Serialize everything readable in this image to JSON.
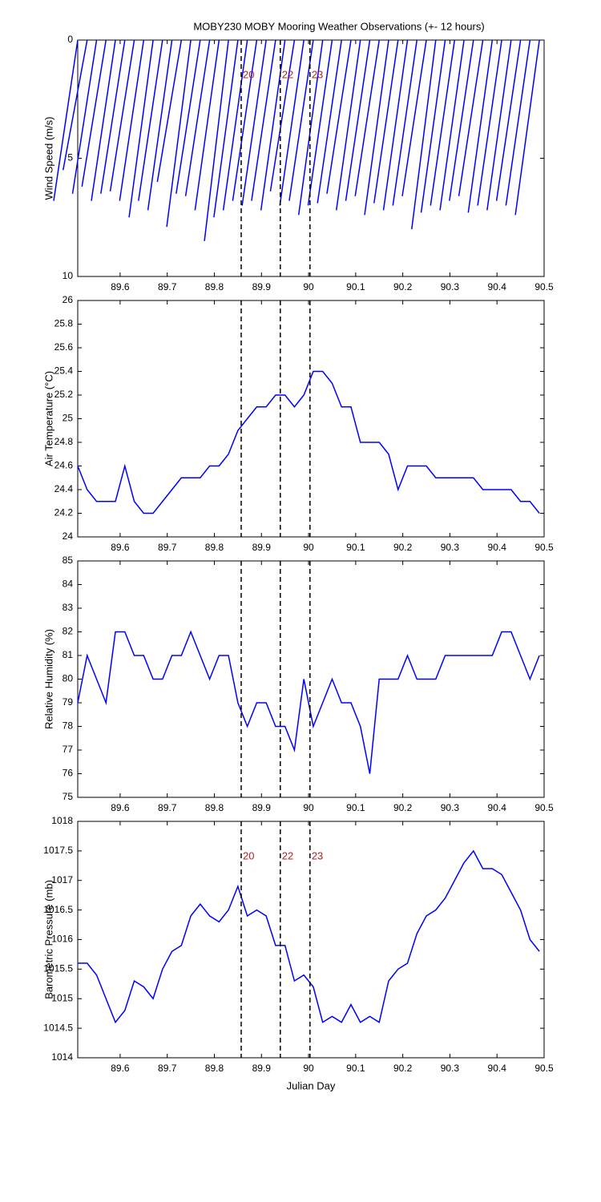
{
  "events": [
    {
      "x": 89.857,
      "label": "20"
    },
    {
      "x": 89.94,
      "label": "22"
    },
    {
      "x": 90.003,
      "label": "23"
    }
  ],
  "chart_data": [
    {
      "type": "stick",
      "title": "MOBY230 MOBY Mooring Weather Observations (+- 12 hours)",
      "ylabel": "Wind Speed (m/s)",
      "color": "#0000ff",
      "event_labels": true,
      "xlim": [
        89.51,
        90.5
      ],
      "xticks": [
        89.6,
        89.7,
        89.8,
        89.9,
        90,
        90.1,
        90.2,
        90.3,
        90.4,
        90.5
      ],
      "ylim": [
        0,
        10
      ],
      "y_reversed": true,
      "yticks": [
        0,
        5,
        10
      ],
      "x": [
        89.51,
        89.53,
        89.55,
        89.57,
        89.59,
        89.61,
        89.63,
        89.65,
        89.67,
        89.69,
        89.71,
        89.73,
        89.75,
        89.77,
        89.79,
        89.81,
        89.83,
        89.85,
        89.87,
        89.89,
        89.91,
        89.93,
        89.95,
        89.97,
        89.99,
        90.01,
        90.03,
        90.05,
        90.07,
        90.09,
        90.11,
        90.13,
        90.15,
        90.17,
        90.19,
        90.21,
        90.23,
        90.25,
        90.27,
        90.29,
        90.31,
        90.33,
        90.35,
        90.37,
        90.39,
        90.41,
        90.43,
        90.45,
        90.47,
        90.49
      ],
      "values": [
        6.8,
        5.5,
        6.5,
        6.2,
        6.8,
        6.5,
        6.4,
        6.8,
        7.5,
        6.8,
        7.2,
        6.0,
        7.9,
        6.5,
        6.6,
        7.2,
        8.5,
        7.5,
        7.2,
        6.8,
        7.0,
        6.8,
        7.2,
        6.4,
        7.0,
        6.8,
        7.4,
        7.0,
        6.9,
        6.5,
        7.2,
        6.8,
        6.6,
        7.4,
        6.9,
        7.2,
        7.0,
        6.6,
        8.0,
        7.3,
        7.0,
        7.2,
        6.8,
        6.6,
        7.3,
        7.0,
        7.2,
        6.8,
        7.0,
        7.4
      ]
    },
    {
      "type": "line",
      "ylabel": "Air Temperature (°C)",
      "color": "#0000ff",
      "event_labels": false,
      "xlim": [
        89.51,
        90.5
      ],
      "xticks": [
        89.6,
        89.7,
        89.8,
        89.9,
        90,
        90.1,
        90.2,
        90.3,
        90.4,
        90.5
      ],
      "ylim": [
        24,
        26
      ],
      "yticks": [
        24,
        24.2,
        24.4,
        24.6,
        24.8,
        25,
        25.2,
        25.4,
        25.6,
        25.8,
        26
      ],
      "x": [
        89.51,
        89.53,
        89.55,
        89.57,
        89.59,
        89.61,
        89.63,
        89.65,
        89.67,
        89.69,
        89.71,
        89.73,
        89.75,
        89.77,
        89.79,
        89.81,
        89.83,
        89.85,
        89.87,
        89.89,
        89.91,
        89.93,
        89.95,
        89.97,
        89.99,
        90.01,
        90.03,
        90.05,
        90.07,
        90.09,
        90.11,
        90.13,
        90.15,
        90.17,
        90.19,
        90.21,
        90.23,
        90.25,
        90.27,
        90.29,
        90.31,
        90.33,
        90.35,
        90.37,
        90.39,
        90.41,
        90.43,
        90.45,
        90.47,
        90.49
      ],
      "values": [
        24.6,
        24.4,
        24.3,
        24.3,
        24.3,
        24.6,
        24.3,
        24.2,
        24.2,
        24.3,
        24.4,
        24.5,
        24.5,
        24.5,
        24.6,
        24.6,
        24.7,
        24.9,
        25.0,
        25.1,
        25.1,
        25.2,
        25.2,
        25.1,
        25.2,
        25.4,
        25.4,
        25.3,
        25.1,
        25.1,
        24.8,
        24.8,
        24.8,
        24.7,
        24.4,
        24.6,
        24.6,
        24.6,
        24.5,
        24.5,
        24.5,
        24.5,
        24.5,
        24.4,
        24.4,
        24.4,
        24.4,
        24.3,
        24.3,
        24.2
      ]
    },
    {
      "type": "line",
      "ylabel": "Relative Humidity (%)",
      "color": "#0000ff",
      "event_labels": false,
      "xlim": [
        89.51,
        90.5
      ],
      "xticks": [
        89.6,
        89.7,
        89.8,
        89.9,
        90,
        90.1,
        90.2,
        90.3,
        90.4,
        90.5
      ],
      "ylim": [
        75,
        85
      ],
      "yticks": [
        75,
        76,
        77,
        78,
        79,
        80,
        81,
        82,
        83,
        84,
        85
      ],
      "x": [
        89.51,
        89.53,
        89.55,
        89.57,
        89.59,
        89.61,
        89.63,
        89.65,
        89.67,
        89.69,
        89.71,
        89.73,
        89.75,
        89.77,
        89.79,
        89.81,
        89.83,
        89.85,
        89.87,
        89.89,
        89.91,
        89.93,
        89.95,
        89.97,
        89.99,
        90.01,
        90.03,
        90.05,
        90.07,
        90.09,
        90.11,
        90.13,
        90.15,
        90.17,
        90.19,
        90.21,
        90.23,
        90.25,
        90.27,
        90.29,
        90.31,
        90.33,
        90.35,
        90.37,
        90.39,
        90.41,
        90.43,
        90.45,
        90.47,
        90.49
      ],
      "values": [
        79,
        81,
        80,
        79,
        82,
        82,
        81,
        81,
        80,
        80,
        81,
        81,
        82,
        81,
        80,
        81,
        81,
        79,
        78,
        79,
        79,
        78,
        78,
        77,
        80,
        78,
        79,
        80,
        79,
        79,
        78,
        76,
        80,
        80,
        80,
        81,
        80,
        80,
        80,
        81,
        81,
        81,
        81,
        81,
        81,
        82,
        82,
        81,
        80,
        81
      ]
    },
    {
      "type": "line",
      "ylabel": "Barometric Pressure (mb)",
      "xlabel": "Julian Day",
      "color": "#0000ff",
      "event_labels": true,
      "xlim": [
        89.51,
        90.5
      ],
      "xticks": [
        89.6,
        89.7,
        89.8,
        89.9,
        90,
        90.1,
        90.2,
        90.3,
        90.4,
        90.5
      ],
      "ylim": [
        1014,
        1018
      ],
      "yticks": [
        1014,
        1014.5,
        1015,
        1015.5,
        1016,
        1016.5,
        1017,
        1017.5,
        1018
      ],
      "x": [
        89.51,
        89.53,
        89.55,
        89.57,
        89.59,
        89.61,
        89.63,
        89.65,
        89.67,
        89.69,
        89.71,
        89.73,
        89.75,
        89.77,
        89.79,
        89.81,
        89.83,
        89.85,
        89.87,
        89.89,
        89.91,
        89.93,
        89.95,
        89.97,
        89.99,
        90.01,
        90.03,
        90.05,
        90.07,
        90.09,
        90.11,
        90.13,
        90.15,
        90.17,
        90.19,
        90.21,
        90.23,
        90.25,
        90.27,
        90.29,
        90.31,
        90.33,
        90.35,
        90.37,
        90.39,
        90.41,
        90.43,
        90.45,
        90.47,
        90.49
      ],
      "values": [
        1015.6,
        1015.6,
        1015.4,
        1015.0,
        1014.6,
        1014.8,
        1015.3,
        1015.2,
        1015.0,
        1015.5,
        1015.8,
        1015.9,
        1016.4,
        1016.6,
        1016.4,
        1016.3,
        1016.5,
        1016.9,
        1016.4,
        1016.5,
        1016.4,
        1015.9,
        1015.9,
        1015.3,
        1015.4,
        1015.2,
        1014.6,
        1014.7,
        1014.6,
        1014.9,
        1014.6,
        1014.7,
        1014.6,
        1015.3,
        1015.5,
        1015.6,
        1016.1,
        1016.4,
        1016.5,
        1016.7,
        1017.0,
        1017.3,
        1017.5,
        1017.2,
        1017.2,
        1017.1,
        1016.8,
        1016.5,
        1016.0,
        1015.8
      ]
    }
  ]
}
